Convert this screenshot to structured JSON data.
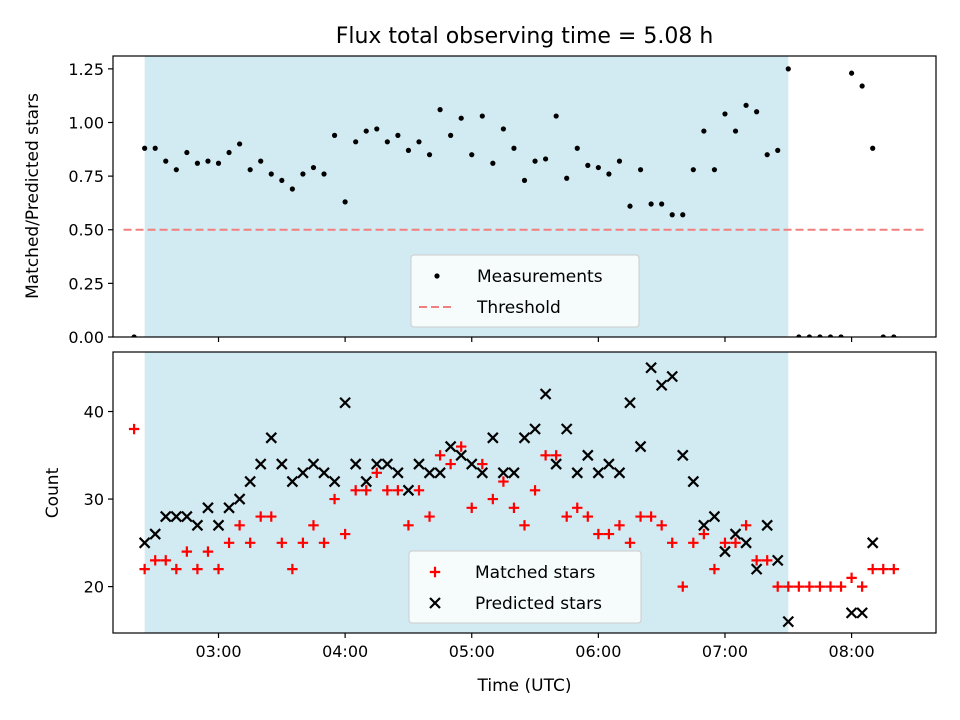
{
  "chart_data": [
    {
      "type": "scatter",
      "title": "Flux total observing time = 5.08 h",
      "ylabel": "Matched/Predicted stars",
      "xlabel": "",
      "xlim": [
        "02:10",
        "08:40"
      ],
      "ylim": [
        0,
        1.31
      ],
      "x_ticks": [
        "03:00",
        "04:00",
        "05:00",
        "06:00",
        "07:00",
        "08:00"
      ],
      "y_ticks": [
        "0.00",
        "0.25",
        "0.50",
        "0.75",
        "1.00",
        "1.25"
      ],
      "shaded_interval": [
        "02:25",
        "07:30"
      ],
      "shaded_color": "#add8e6",
      "legend": {
        "placement": "lower center",
        "entries": [
          "Measurements",
          "Threshold"
        ]
      },
      "series": [
        {
          "name": "Measurements",
          "color": "#000000",
          "marker": "dot",
          "points": [
            [
              "02:20",
              0.0
            ],
            [
              "02:25",
              0.88
            ],
            [
              "02:30",
              0.88
            ],
            [
              "02:35",
              0.82
            ],
            [
              "02:40",
              0.78
            ],
            [
              "02:45",
              0.86
            ],
            [
              "02:50",
              0.81
            ],
            [
              "02:55",
              0.82
            ],
            [
              "03:00",
              0.81
            ],
            [
              "03:05",
              0.86
            ],
            [
              "03:10",
              0.9
            ],
            [
              "03:15",
              0.78
            ],
            [
              "03:20",
              0.82
            ],
            [
              "03:25",
              0.76
            ],
            [
              "03:30",
              0.73
            ],
            [
              "03:35",
              0.69
            ],
            [
              "03:40",
              0.76
            ],
            [
              "03:45",
              0.79
            ],
            [
              "03:50",
              0.76
            ],
            [
              "03:55",
              0.94
            ],
            [
              "04:00",
              0.63
            ],
            [
              "04:05",
              0.91
            ],
            [
              "04:10",
              0.96
            ],
            [
              "04:15",
              0.97
            ],
            [
              "04:20",
              0.91
            ],
            [
              "04:25",
              0.94
            ],
            [
              "04:30",
              0.87
            ],
            [
              "04:35",
              0.91
            ],
            [
              "04:40",
              0.85
            ],
            [
              "04:45",
              1.06
            ],
            [
              "04:50",
              0.94
            ],
            [
              "04:55",
              1.02
            ],
            [
              "05:00",
              0.85
            ],
            [
              "05:05",
              1.03
            ],
            [
              "05:10",
              0.81
            ],
            [
              "05:15",
              0.97
            ],
            [
              "05:20",
              0.88
            ],
            [
              "05:25",
              0.73
            ],
            [
              "05:30",
              0.82
            ],
            [
              "05:35",
              0.83
            ],
            [
              "05:40",
              1.03
            ],
            [
              "05:45",
              0.74
            ],
            [
              "05:50",
              0.88
            ],
            [
              "05:55",
              0.8
            ],
            [
              "06:00",
              0.79
            ],
            [
              "06:05",
              0.76
            ],
            [
              "06:10",
              0.82
            ],
            [
              "06:15",
              0.61
            ],
            [
              "06:20",
              0.78
            ],
            [
              "06:25",
              0.62
            ],
            [
              "06:30",
              0.62
            ],
            [
              "06:35",
              0.57
            ],
            [
              "06:40",
              0.57
            ],
            [
              "06:45",
              0.78
            ],
            [
              "06:50",
              0.96
            ],
            [
              "06:55",
              0.78
            ],
            [
              "07:00",
              1.04
            ],
            [
              "07:05",
              0.96
            ],
            [
              "07:10",
              1.08
            ],
            [
              "07:15",
              1.05
            ],
            [
              "07:20",
              0.85
            ],
            [
              "07:25",
              0.87
            ],
            [
              "07:30",
              1.25
            ],
            [
              "07:35",
              0.0
            ],
            [
              "07:40",
              0.0
            ],
            [
              "07:45",
              0.0
            ],
            [
              "07:50",
              0.0
            ],
            [
              "07:55",
              0.0
            ],
            [
              "08:00",
              1.23
            ],
            [
              "08:05",
              1.17
            ],
            [
              "08:10",
              0.88
            ],
            [
              "08:15",
              0.0
            ],
            [
              "08:20",
              0.0
            ]
          ]
        },
        {
          "name": "Threshold",
          "color": "#f08080",
          "style": "dashed",
          "points": [
            [
              "02:15",
              0.5
            ],
            [
              "08:35",
              0.5
            ]
          ]
        }
      ]
    },
    {
      "type": "scatter",
      "title": "",
      "ylabel": "Count",
      "xlabel": "Time (UTC)",
      "xlim": [
        "02:10",
        "08:40"
      ],
      "ylim": [
        14.7,
        46.8
      ],
      "x_ticks": [
        "03:00",
        "04:00",
        "05:00",
        "06:00",
        "07:00",
        "08:00"
      ],
      "y_ticks": [
        "20",
        "30",
        "40"
      ],
      "shaded_interval": [
        "02:25",
        "07:30"
      ],
      "shaded_color": "#add8e6",
      "legend": {
        "placement": "lower center",
        "entries": [
          "Matched stars",
          "Predicted stars"
        ]
      },
      "series": [
        {
          "name": "Matched stars",
          "color": "#ff0000",
          "marker": "plus",
          "points": [
            [
              "02:20",
              38
            ],
            [
              "02:25",
              22
            ],
            [
              "02:30",
              23
            ],
            [
              "02:35",
              23
            ],
            [
              "02:40",
              22
            ],
            [
              "02:45",
              24
            ],
            [
              "02:50",
              22
            ],
            [
              "02:55",
              24
            ],
            [
              "03:00",
              22
            ],
            [
              "03:05",
              25
            ],
            [
              "03:10",
              27
            ],
            [
              "03:15",
              25
            ],
            [
              "03:20",
              28
            ],
            [
              "03:25",
              28
            ],
            [
              "03:30",
              25
            ],
            [
              "03:35",
              22
            ],
            [
              "03:40",
              25
            ],
            [
              "03:45",
              27
            ],
            [
              "03:50",
              25
            ],
            [
              "03:55",
              30
            ],
            [
              "04:00",
              26
            ],
            [
              "04:05",
              31
            ],
            [
              "04:10",
              31
            ],
            [
              "04:15",
              33
            ],
            [
              "04:20",
              31
            ],
            [
              "04:25",
              31
            ],
            [
              "04:30",
              27
            ],
            [
              "04:35",
              31
            ],
            [
              "04:40",
              28
            ],
            [
              "04:45",
              35
            ],
            [
              "04:50",
              34
            ],
            [
              "04:55",
              36
            ],
            [
              "05:00",
              29
            ],
            [
              "05:05",
              34
            ],
            [
              "05:10",
              30
            ],
            [
              "05:15",
              32
            ],
            [
              "05:20",
              29
            ],
            [
              "05:25",
              27
            ],
            [
              "05:30",
              31
            ],
            [
              "05:35",
              35
            ],
            [
              "05:40",
              35
            ],
            [
              "05:45",
              28
            ],
            [
              "05:50",
              29
            ],
            [
              "05:55",
              28
            ],
            [
              "06:00",
              26
            ],
            [
              "06:05",
              26
            ],
            [
              "06:10",
              27
            ],
            [
              "06:15",
              25
            ],
            [
              "06:20",
              28
            ],
            [
              "06:25",
              28
            ],
            [
              "06:30",
              27
            ],
            [
              "06:35",
              25
            ],
            [
              "06:40",
              20
            ],
            [
              "06:45",
              25
            ],
            [
              "06:50",
              26
            ],
            [
              "06:55",
              22
            ],
            [
              "07:00",
              25
            ],
            [
              "07:05",
              25
            ],
            [
              "07:10",
              27
            ],
            [
              "07:15",
              23
            ],
            [
              "07:20",
              23
            ],
            [
              "07:25",
              20
            ],
            [
              "07:30",
              20
            ],
            [
              "07:35",
              20
            ],
            [
              "07:40",
              20
            ],
            [
              "07:45",
              20
            ],
            [
              "07:50",
              20
            ],
            [
              "07:55",
              20
            ],
            [
              "08:00",
              21
            ],
            [
              "08:05",
              20
            ],
            [
              "08:10",
              22
            ],
            [
              "08:15",
              22
            ],
            [
              "08:20",
              22
            ]
          ]
        },
        {
          "name": "Predicted stars",
          "color": "#000000",
          "marker": "x",
          "points": [
            [
              "02:25",
              25
            ],
            [
              "02:30",
              26
            ],
            [
              "02:35",
              28
            ],
            [
              "02:40",
              28
            ],
            [
              "02:45",
              28
            ],
            [
              "02:50",
              27
            ],
            [
              "02:55",
              29
            ],
            [
              "03:00",
              27
            ],
            [
              "03:05",
              29
            ],
            [
              "03:10",
              30
            ],
            [
              "03:15",
              32
            ],
            [
              "03:20",
              34
            ],
            [
              "03:25",
              37
            ],
            [
              "03:30",
              34
            ],
            [
              "03:35",
              32
            ],
            [
              "03:40",
              33
            ],
            [
              "03:45",
              34
            ],
            [
              "03:50",
              33
            ],
            [
              "03:55",
              32
            ],
            [
              "04:00",
              41
            ],
            [
              "04:05",
              34
            ],
            [
              "04:10",
              32
            ],
            [
              "04:15",
              34
            ],
            [
              "04:20",
              34
            ],
            [
              "04:25",
              33
            ],
            [
              "04:30",
              31
            ],
            [
              "04:35",
              34
            ],
            [
              "04:40",
              33
            ],
            [
              "04:45",
              33
            ],
            [
              "04:50",
              36
            ],
            [
              "04:55",
              35
            ],
            [
              "05:00",
              34
            ],
            [
              "05:05",
              33
            ],
            [
              "05:10",
              37
            ],
            [
              "05:15",
              33
            ],
            [
              "05:20",
              33
            ],
            [
              "05:25",
              37
            ],
            [
              "05:30",
              38
            ],
            [
              "05:35",
              42
            ],
            [
              "05:40",
              34
            ],
            [
              "05:45",
              38
            ],
            [
              "05:50",
              33
            ],
            [
              "05:55",
              35
            ],
            [
              "06:00",
              33
            ],
            [
              "06:05",
              34
            ],
            [
              "06:10",
              33
            ],
            [
              "06:15",
              41
            ],
            [
              "06:20",
              36
            ],
            [
              "06:25",
              45
            ],
            [
              "06:30",
              43
            ],
            [
              "06:35",
              44
            ],
            [
              "06:40",
              35
            ],
            [
              "06:45",
              32
            ],
            [
              "06:50",
              27
            ],
            [
              "06:55",
              28
            ],
            [
              "07:00",
              24
            ],
            [
              "07:05",
              26
            ],
            [
              "07:10",
              25
            ],
            [
              "07:15",
              22
            ],
            [
              "07:20",
              27
            ],
            [
              "07:25",
              23
            ],
            [
              "07:30",
              16
            ],
            [
              "08:00",
              17
            ],
            [
              "08:05",
              17
            ],
            [
              "08:10",
              25
            ]
          ]
        }
      ]
    }
  ]
}
